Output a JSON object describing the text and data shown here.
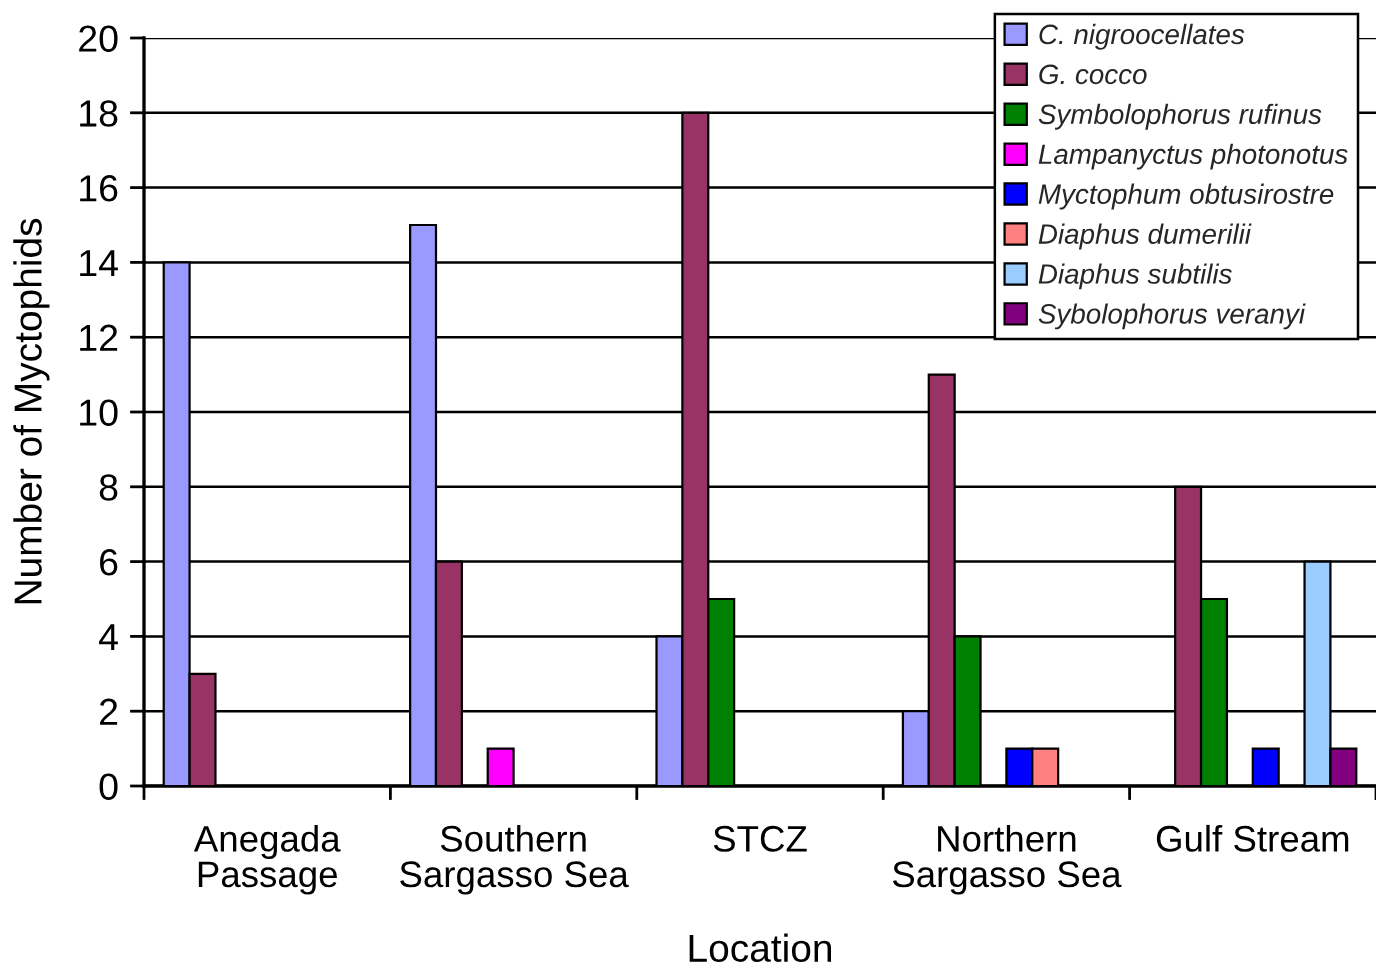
{
  "chart_data": {
    "type": "bar",
    "xlabel": "Location",
    "ylabel": "Number of Myctophids",
    "categories": [
      "Anegada\nPassage",
      "Southern\nSargasso Sea",
      "STCZ",
      "Northern\nSargasso Sea",
      "Gulf Stream"
    ],
    "series": [
      {
        "name": "C. nigroocellates",
        "color": "#9999ff",
        "values": [
          14,
          15,
          4,
          2,
          null
        ]
      },
      {
        "name": "G. cocco",
        "color": "#993366",
        "values": [
          3,
          6,
          18,
          11,
          8
        ]
      },
      {
        "name": "Symbolophorus rufinus",
        "color": "#008000",
        "values": [
          null,
          null,
          5,
          4,
          5
        ]
      },
      {
        "name": "Lampanyctus photonotus",
        "color": "#ff00ff",
        "values": [
          null,
          1,
          null,
          null,
          null
        ]
      },
      {
        "name": "Myctophum obtusirostre",
        "color": "#0000ff",
        "values": [
          null,
          null,
          null,
          1,
          1
        ]
      },
      {
        "name": "Diaphus dumerilii",
        "color": "#ff8080",
        "values": [
          null,
          null,
          null,
          1,
          null
        ]
      },
      {
        "name": "Diaphus subtilis",
        "color": "#99ccff",
        "values": [
          null,
          null,
          null,
          null,
          6
        ]
      },
      {
        "name": "Sybolophorus veranyi",
        "color": "#800080",
        "values": [
          null,
          null,
          null,
          null,
          1
        ]
      }
    ],
    "ylim": [
      0,
      20
    ],
    "yticks": [
      0,
      2,
      4,
      6,
      8,
      10,
      12,
      14,
      16,
      18,
      20
    ],
    "grid": "y",
    "legend": "top right"
  }
}
